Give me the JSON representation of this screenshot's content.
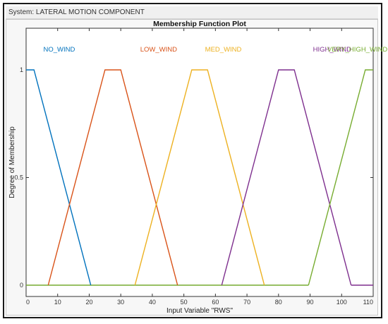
{
  "window": {
    "system_text": "System: LATERAL MOTION COMPONENT"
  },
  "chart_data": {
    "type": "line",
    "title": "Membership Function Plot",
    "xlabel": "Input Variable \"RWS\"",
    "ylabel": "Degree of Membership",
    "xlim": [
      0,
      110
    ],
    "ylim": [
      0,
      1
    ],
    "x_ticks": [
      0,
      10,
      20,
      30,
      40,
      50,
      60,
      70,
      80,
      90,
      100,
      110
    ],
    "y_ticks": [
      0,
      0.5,
      1
    ],
    "grid": false,
    "series": [
      {
        "name": "NO_WIND",
        "color": "#0072BD",
        "x": [
          0,
          2.5,
          20.5
        ],
        "y": [
          1,
          1,
          0
        ]
      },
      {
        "name": "LOW_WIND",
        "color": "#D95319",
        "x": [
          7,
          25,
          30,
          48
        ],
        "y": [
          0,
          1,
          1,
          0
        ]
      },
      {
        "name": "MED_WIND",
        "color": "#EDB120",
        "x": [
          34.5,
          52.5,
          57.5,
          75.5
        ],
        "y": [
          0,
          1,
          1,
          0
        ]
      },
      {
        "name": "HIGH_WIND",
        "color": "#7E2F8E",
        "x": [
          62,
          80,
          85,
          103
        ],
        "y": [
          0,
          1,
          1,
          0
        ]
      },
      {
        "name": "VERY_HIGH_WIND",
        "color": "#77AC30",
        "x": [
          89.5,
          107.5,
          110
        ],
        "y": [
          0,
          1,
          1
        ]
      }
    ],
    "zero_line": {
      "color": "#77AC30",
      "x": [
        0,
        89.5
      ],
      "y": [
        0,
        0
      ]
    },
    "tail_line": {
      "color": "#7E2F8E",
      "x": [
        103,
        110
      ],
      "y": [
        0,
        0
      ]
    }
  }
}
